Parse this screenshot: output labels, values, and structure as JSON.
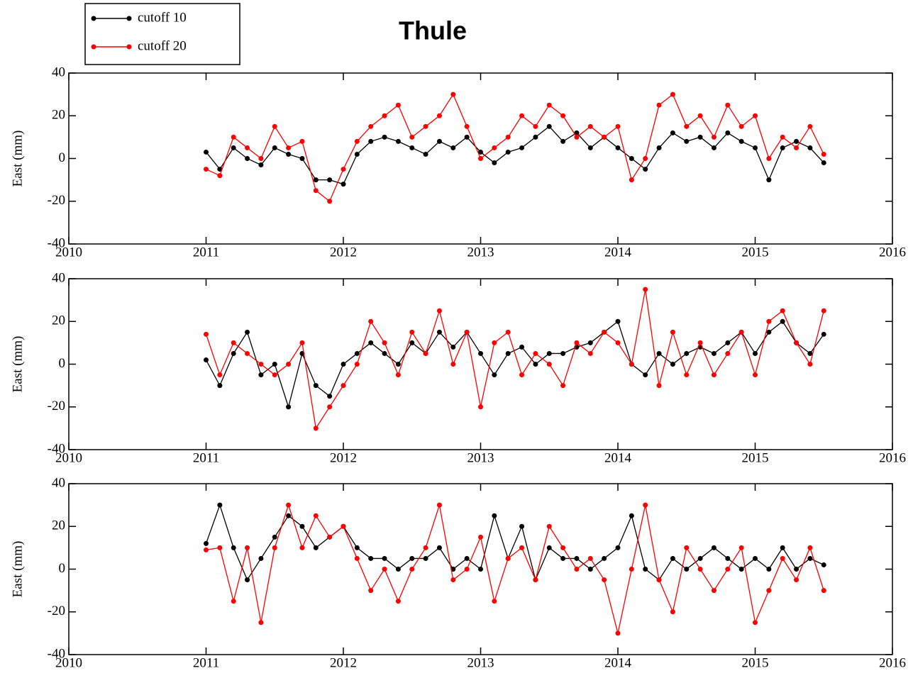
{
  "chart_data": [
    {
      "type": "line",
      "title": "Thule",
      "ylabel": "East (mm)",
      "xlim": [
        2010,
        2016
      ],
      "xticks": [
        2010,
        2011,
        2012,
        2013,
        2014,
        2015,
        2016
      ],
      "ylim": [
        -40,
        40
      ],
      "yticks": [
        -40,
        -20,
        0,
        20,
        40
      ],
      "x": [
        2011,
        2011.1,
        2011.2,
        2011.3,
        2011.4,
        2011.5,
        2011.6,
        2011.7,
        2011.8,
        2011.9,
        2012,
        2012.1,
        2012.2,
        2012.3,
        2012.4,
        2012.5,
        2012.6,
        2012.7,
        2012.8,
        2012.9,
        2013,
        2013.1,
        2013.2,
        2013.3,
        2013.4,
        2013.5,
        2013.6,
        2013.7,
        2013.8,
        2013.9,
        2014,
        2014.1,
        2014.2,
        2014.3,
        2014.4,
        2014.5,
        2014.6,
        2014.7,
        2014.8,
        2014.9,
        2015,
        2015.1,
        2015.2,
        2015.3,
        2015.4,
        2015.5
      ],
      "series": [
        {
          "name": "cutoff 10",
          "color": "#000000",
          "values": [
            3,
            -5,
            5,
            0,
            -3,
            5,
            2,
            0,
            -10,
            -10,
            -12,
            2,
            8,
            10,
            8,
            5,
            2,
            8,
            5,
            10,
            3,
            -2,
            3,
            5,
            10,
            15,
            8,
            12,
            5,
            10,
            5,
            0,
            -5,
            5,
            12,
            8,
            10,
            5,
            12,
            8,
            5,
            -10,
            5,
            8,
            5,
            -2
          ]
        },
        {
          "name": "cutoff 20",
          "color": "#ff0000",
          "values": [
            -5,
            -8,
            10,
            5,
            0,
            15,
            5,
            8,
            -15,
            -20,
            -5,
            8,
            15,
            20,
            25,
            10,
            15,
            20,
            30,
            15,
            0,
            5,
            10,
            20,
            15,
            25,
            20,
            10,
            15,
            10,
            15,
            -10,
            0,
            25,
            30,
            15,
            20,
            10,
            25,
            15,
            20,
            0,
            10,
            5,
            15,
            2
          ]
        }
      ]
    },
    {
      "type": "line",
      "ylabel": "East (mm)",
      "xlim": [
        2010,
        2016
      ],
      "xticks": [
        2010,
        2011,
        2012,
        2013,
        2014,
        2015,
        2016
      ],
      "ylim": [
        -40,
        40
      ],
      "yticks": [
        -40,
        -20,
        0,
        20,
        40
      ],
      "x": [
        2011,
        2011.1,
        2011.2,
        2011.3,
        2011.4,
        2011.5,
        2011.6,
        2011.7,
        2011.8,
        2011.9,
        2012,
        2012.1,
        2012.2,
        2012.3,
        2012.4,
        2012.5,
        2012.6,
        2012.7,
        2012.8,
        2012.9,
        2013,
        2013.1,
        2013.2,
        2013.3,
        2013.4,
        2013.5,
        2013.6,
        2013.7,
        2013.8,
        2013.9,
        2014,
        2014.1,
        2014.2,
        2014.3,
        2014.4,
        2014.5,
        2014.6,
        2014.7,
        2014.8,
        2014.9,
        2015,
        2015.1,
        2015.2,
        2015.3,
        2015.4,
        2015.5
      ],
      "series": [
        {
          "name": "cutoff 10",
          "color": "#000000",
          "values": [
            2,
            -10,
            5,
            15,
            -5,
            0,
            -20,
            5,
            -10,
            -15,
            0,
            5,
            10,
            5,
            0,
            10,
            5,
            15,
            8,
            15,
            5,
            -5,
            5,
            8,
            0,
            5,
            5,
            8,
            10,
            15,
            20,
            0,
            -5,
            5,
            0,
            5,
            8,
            5,
            10,
            15,
            5,
            15,
            20,
            10,
            5,
            14
          ]
        },
        {
          "name": "cutoff 20",
          "color": "#ff0000",
          "values": [
            14,
            -5,
            10,
            5,
            0,
            -5,
            0,
            10,
            -30,
            -20,
            -10,
            0,
            20,
            10,
            -5,
            15,
            5,
            25,
            0,
            15,
            -20,
            10,
            15,
            -5,
            5,
            0,
            -10,
            10,
            5,
            15,
            10,
            0,
            35,
            -10,
            15,
            -5,
            10,
            -5,
            5,
            15,
            -5,
            20,
            25,
            10,
            0,
            25
          ]
        }
      ]
    },
    {
      "type": "line",
      "ylabel": "East (mm)",
      "xlim": [
        2010,
        2016
      ],
      "xticks": [
        2010,
        2011,
        2012,
        2013,
        2014,
        2015,
        2016
      ],
      "ylim": [
        -40,
        40
      ],
      "yticks": [
        -40,
        -20,
        0,
        20,
        40
      ],
      "x": [
        2011,
        2011.1,
        2011.2,
        2011.3,
        2011.4,
        2011.5,
        2011.6,
        2011.7,
        2011.8,
        2011.9,
        2012,
        2012.1,
        2012.2,
        2012.3,
        2012.4,
        2012.5,
        2012.6,
        2012.7,
        2012.8,
        2012.9,
        2013,
        2013.1,
        2013.2,
        2013.3,
        2013.4,
        2013.5,
        2013.6,
        2013.7,
        2013.8,
        2013.9,
        2014,
        2014.1,
        2014.2,
        2014.3,
        2014.4,
        2014.5,
        2014.6,
        2014.7,
        2014.8,
        2014.9,
        2015,
        2015.1,
        2015.2,
        2015.3,
        2015.4,
        2015.5
      ],
      "series": [
        {
          "name": "cutoff 10",
          "color": "#000000",
          "values": [
            12,
            30,
            10,
            -5,
            5,
            15,
            25,
            20,
            10,
            15,
            20,
            10,
            5,
            5,
            0,
            5,
            5,
            10,
            0,
            5,
            0,
            25,
            5,
            20,
            -5,
            10,
            5,
            5,
            0,
            5,
            10,
            25,
            0,
            -5,
            5,
            0,
            5,
            10,
            5,
            0,
            5,
            0,
            10,
            0,
            5,
            2
          ]
        },
        {
          "name": "cutoff 20",
          "color": "#ff0000",
          "values": [
            9,
            10,
            -15,
            10,
            -25,
            10,
            30,
            10,
            25,
            15,
            20,
            5,
            -10,
            0,
            -15,
            0,
            10,
            30,
            -5,
            0,
            15,
            -15,
            5,
            10,
            -5,
            20,
            10,
            0,
            5,
            -5,
            -30,
            0,
            30,
            -5,
            -20,
            10,
            0,
            -10,
            0,
            10,
            -25,
            -10,
            5,
            -5,
            10,
            -10
          ]
        }
      ]
    }
  ]
}
